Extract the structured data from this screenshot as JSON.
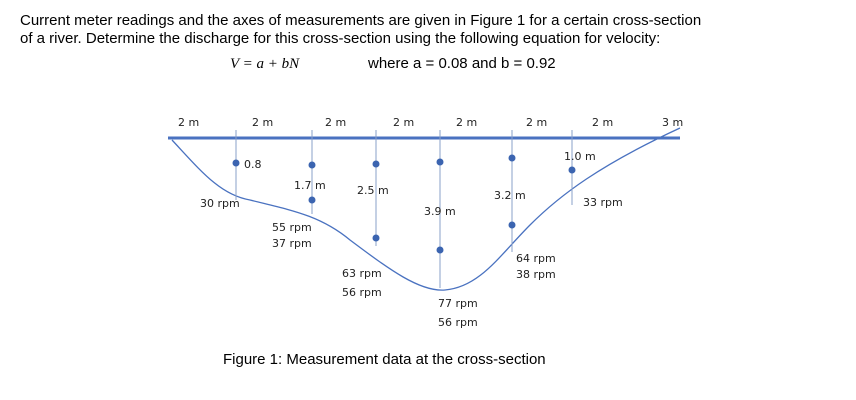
{
  "problem": {
    "lines": [
      "Current meter readings and the axes of measurements are given in Figure 1 for a certain cross-section",
      "of a river. Determine the discharge for this cross-section using the following equation for velocity:"
    ],
    "equation": "V = a + bN",
    "constants": "where a = 0.08 and b = 0.92"
  },
  "figure": {
    "widths": [
      "2 m",
      "2 m",
      "2 m",
      "2 m",
      "2 m",
      "2 m",
      "2 m",
      "3 m"
    ],
    "verticals": [
      {
        "depth": "0.8",
        "rpm": [
          "30 rpm"
        ]
      },
      {
        "depth": "1.7 m",
        "rpm": [
          "55 rpm",
          "37 rpm"
        ]
      },
      {
        "depth": "2.5 m",
        "rpm": [
          "63 rpm",
          "56 rpm"
        ]
      },
      {
        "depth": "3.9 m",
        "rpm": [
          "77 rpm",
          "56 rpm"
        ]
      },
      {
        "depth": "3.2 m",
        "rpm": [
          "64 rpm",
          "38 rpm"
        ]
      },
      {
        "depth": "1.0 m",
        "rpm": [
          "33 rpm"
        ]
      }
    ],
    "caption": "Figure 1: Measurement data at the cross-section"
  }
}
